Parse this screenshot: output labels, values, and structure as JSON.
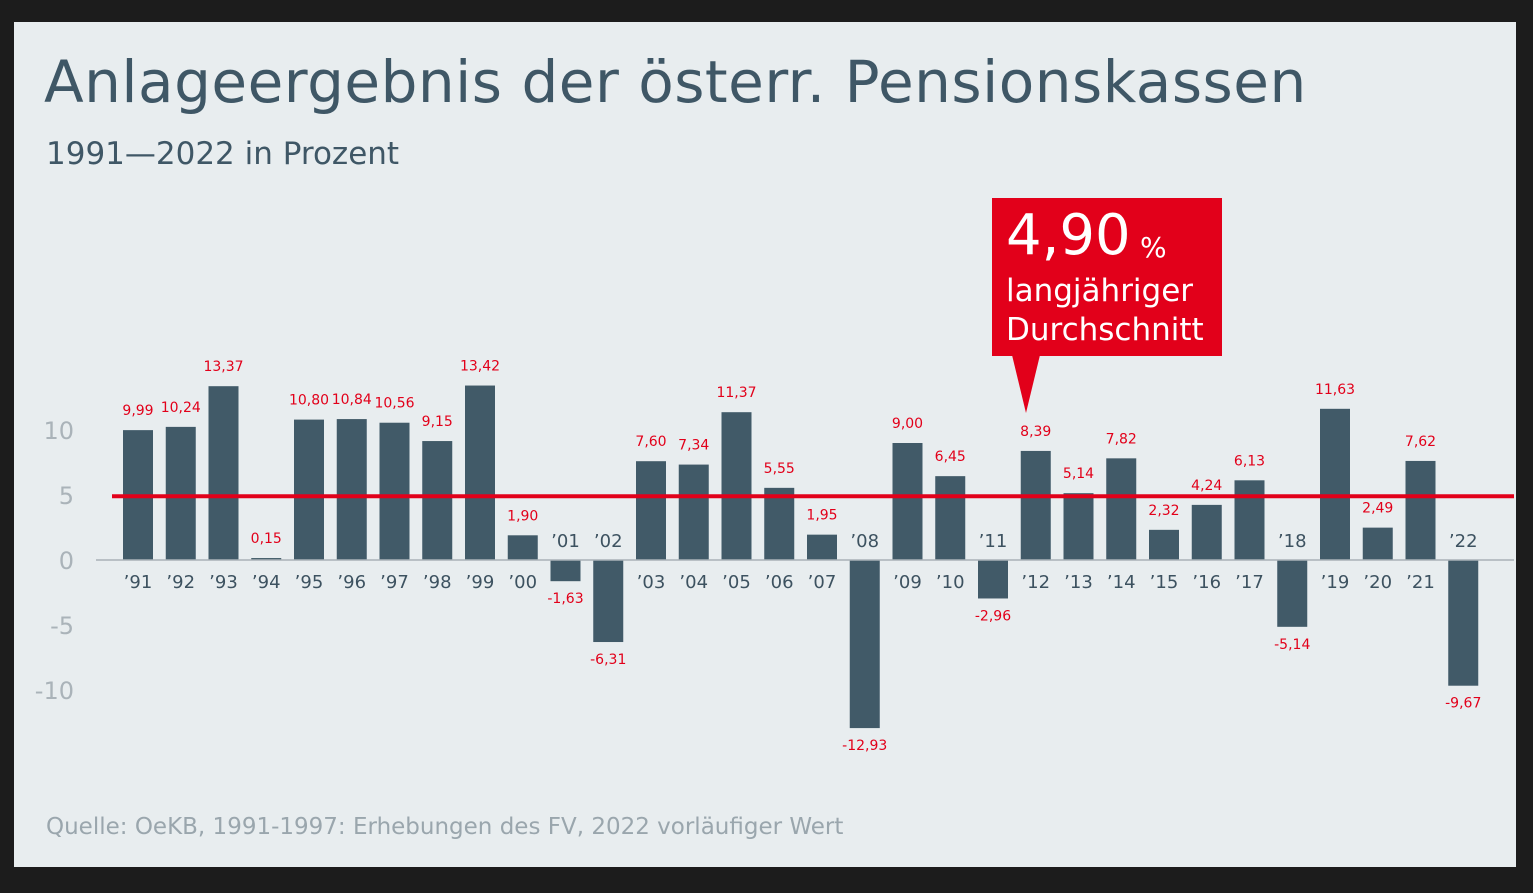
{
  "title": "Anlageergebnis der österr. Pensionskassen",
  "subtitle": "1991—2022 in Prozent",
  "source": "Quelle: OeKB, 1991-1997: Erhebungen des FV, 2022 vorläufiger Wert",
  "callout": {
    "value": "4,90",
    "unit": "%",
    "line1": "langjähriger",
    "line2": "Durchschnitt"
  },
  "chart_data": {
    "type": "bar",
    "title": "Anlageergebnis der österr. Pensionskassen",
    "subtitle": "1991—2022 in Prozent",
    "categories": [
      "’91",
      "’92",
      "’93",
      "’94",
      "’95",
      "’96",
      "’97",
      "’98",
      "’99",
      "’00",
      "’01",
      "’02",
      "’03",
      "’04",
      "’05",
      "’06",
      "’07",
      "’08",
      "’09",
      "’10",
      "’11",
      "’12",
      "’13",
      "’14",
      "’15",
      "’16",
      "’17",
      "’18",
      "’19",
      "’20",
      "’21",
      "’22"
    ],
    "values": [
      9.99,
      10.24,
      13.37,
      0.15,
      10.8,
      10.84,
      10.56,
      9.15,
      13.42,
      1.9,
      -1.63,
      -6.31,
      7.6,
      7.34,
      11.37,
      5.55,
      1.95,
      -12.93,
      9.0,
      6.45,
      -2.96,
      8.39,
      5.14,
      7.82,
      2.32,
      4.24,
      6.13,
      -5.14,
      11.63,
      2.49,
      7.62,
      -9.67
    ],
    "value_labels": [
      "9,99",
      "10,24",
      "13,37",
      "0,15",
      "10,80",
      "10,84",
      "10,56",
      "9,15",
      "13,42",
      "1,90",
      "-1,63",
      "-6,31",
      "7,60",
      "7,34",
      "11,37",
      "5,55",
      "1,95",
      "-12,93",
      "9,00",
      "6,45",
      "-2,96",
      "8,39",
      "5,14",
      "7,82",
      "2,32",
      "4,24",
      "6,13",
      "-5,14",
      "11,63",
      "2,49",
      "7,62",
      "-9,67"
    ],
    "y_ticks": [
      10,
      5,
      0,
      -5,
      -10
    ],
    "y_tick_labels": [
      "10",
      "5",
      "0",
      "-5",
      "-10"
    ],
    "reference_line": 4.9,
    "grid": false,
    "colors": {
      "bar": "#415a68",
      "value_label": "#e2001a",
      "reference_line": "#e2001a",
      "axis": "#a9b2b7",
      "tick_label": "#aab3b9",
      "category_label": "#3d5260"
    }
  }
}
